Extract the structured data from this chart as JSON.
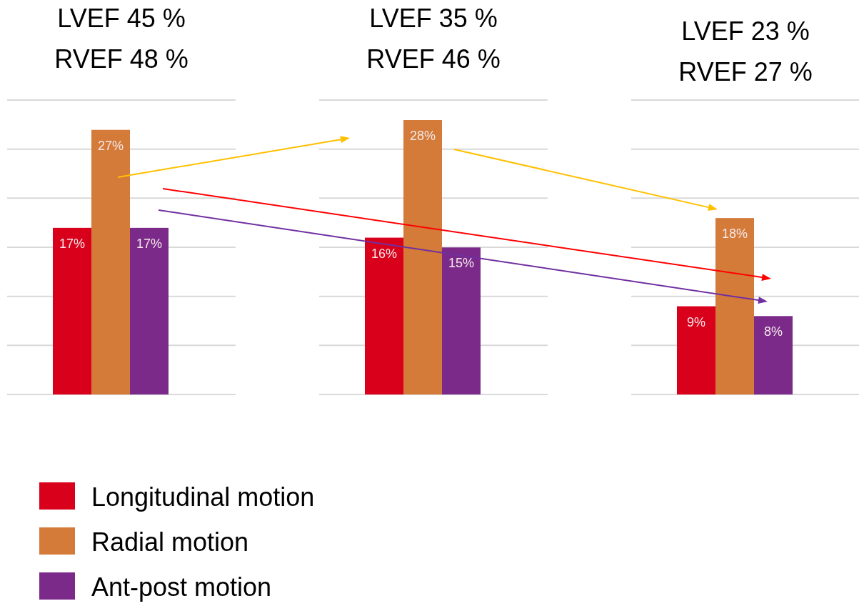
{
  "chart_data": [
    {
      "type": "bar",
      "title": "LVEF 45 %",
      "subtitle": "RVEF 48 %",
      "categories": [
        null
      ],
      "series": [
        {
          "name": "Longitudinal motion",
          "color": "#d9001b",
          "values": [
            17
          ],
          "value_labels": [
            "17%"
          ]
        },
        {
          "name": "Radial motion",
          "color": "#d47b3a",
          "values": [
            27
          ],
          "value_labels": [
            "27%"
          ]
        },
        {
          "name": "Ant-post motion",
          "color": "#7b2a8a",
          "values": [
            17
          ],
          "value_labels": [
            "17%"
          ]
        }
      ],
      "grid": "y",
      "legend": "bottom"
    },
    {
      "type": "bar",
      "title": "LVEF 35 %",
      "subtitle": "RVEF 46 %",
      "categories": [
        null
      ],
      "series": [
        {
          "color": "#d9001b",
          "values": [
            16
          ],
          "value_labels": [
            "16%"
          ]
        },
        {
          "color": "#d47b3a",
          "values": [
            28
          ],
          "value_labels": [
            "28%"
          ]
        },
        {
          "color": "#7b2a8a",
          "values": [
            15
          ],
          "value_labels": [
            "15%"
          ]
        }
      ],
      "grid": "y"
    },
    {
      "type": "bar",
      "title": "LVEF 23 %",
      "subtitle": "RVEF 27 %",
      "categories": [
        null
      ],
      "series": [
        {
          "color": "#d9001b",
          "values": [
            9
          ],
          "value_labels": [
            "9%"
          ]
        },
        {
          "color": "#d47b3a",
          "values": [
            18
          ],
          "value_labels": [
            "18%"
          ]
        },
        {
          "color": "#7b2a8a",
          "values": [
            8
          ],
          "value_labels": [
            "8%"
          ]
        }
      ],
      "grid": "y"
    }
  ]
}
